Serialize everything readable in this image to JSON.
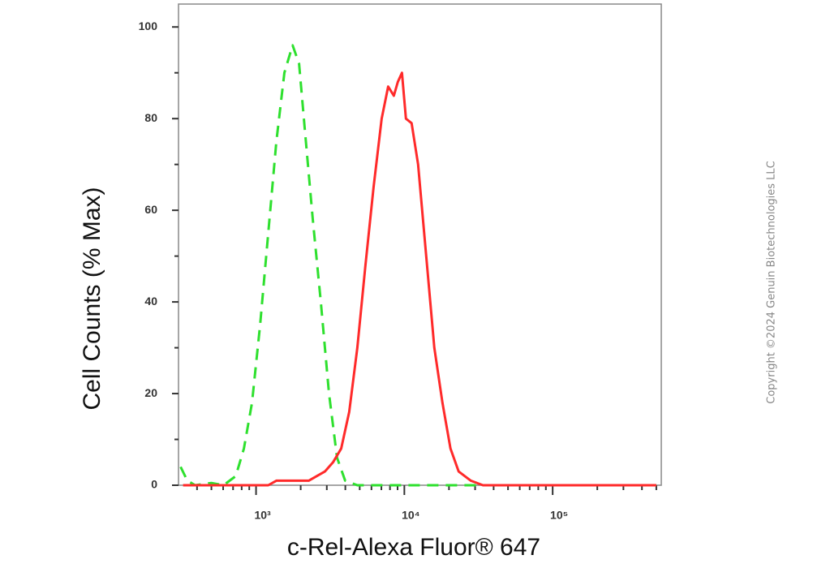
{
  "chart_data": {
    "type": "line",
    "ylabel": "Cell Counts (% Max)",
    "xlabel": "c-Rel-Alexa Fluor® 647",
    "copyright": "Copyright ©2024 Genuin Biotechnologies LLC",
    "xscale": "log",
    "xlim": [
      300,
      540000
    ],
    "ylim": [
      0,
      105
    ],
    "xticks": [
      {
        "value": 1000,
        "label": "10³"
      },
      {
        "value": 10000,
        "label": "10⁴"
      },
      {
        "value": 100000,
        "label": "10⁵"
      }
    ],
    "xminorticks": [
      400,
      500,
      600,
      700,
      800,
      900,
      2000,
      3000,
      4000,
      5000,
      6000,
      7000,
      8000,
      9000,
      20000,
      30000,
      40000,
      50000,
      60000,
      70000,
      80000,
      90000,
      200000,
      300000,
      400000,
      500000
    ],
    "yticks": [
      0,
      20,
      40,
      60,
      80,
      100
    ],
    "yminorticks": [
      10,
      30,
      50,
      70,
      90
    ],
    "series": [
      {
        "color": "#2ee02e",
        "style": "dashed",
        "x": [
          310,
          344,
          389,
          500,
          604,
          730,
          828,
          939,
          1065,
          1208,
          1370,
          1553,
          1763,
          1950,
          2128,
          2414,
          2735,
          3103,
          3519,
          3990,
          4820,
          36000,
          500000
        ],
        "values": [
          4,
          1,
          0,
          0.5,
          0,
          2,
          8,
          18,
          35,
          55,
          75,
          90,
          96,
          92,
          78,
          58,
          40,
          20,
          6,
          1,
          0,
          0,
          0
        ]
      },
      {
        "color": "#ff2a2a",
        "style": "solid",
        "x": [
          322,
          1208,
          1370,
          2265,
          2570,
          2912,
          3303,
          3748,
          4246,
          4820,
          5466,
          6200,
          7030,
          7780,
          8490,
          9040,
          9630,
          10250,
          11200,
          12380,
          14050,
          15930,
          18070,
          20470,
          23230,
          28060,
          33880,
          500000
        ],
        "values": [
          0,
          0,
          1,
          1,
          2,
          3,
          5,
          8,
          16,
          30,
          48,
          65,
          80,
          87,
          85,
          88,
          90,
          80,
          79,
          70,
          50,
          30,
          18,
          8,
          3,
          1,
          0,
          0
        ]
      }
    ]
  }
}
